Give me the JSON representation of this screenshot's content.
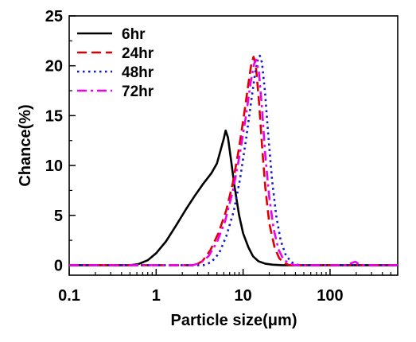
{
  "chart_data": {
    "type": "line",
    "xlabel": "Particle size(μm)",
    "ylabel": "Chance(%)",
    "xscale": "log",
    "xlim": [
      0.1,
      600
    ],
    "ylim": [
      -1,
      25
    ],
    "x_ticks": [
      {
        "value": 0.1,
        "label": "0.1"
      },
      {
        "value": 1,
        "label": "1"
      },
      {
        "value": 10,
        "label": "10"
      },
      {
        "value": 100,
        "label": "100"
      }
    ],
    "y_ticks": [
      {
        "value": 0,
        "label": "0"
      },
      {
        "value": 5,
        "label": "5"
      },
      {
        "value": 10,
        "label": "10"
      },
      {
        "value": 15,
        "label": "15"
      },
      {
        "value": 20,
        "label": "20"
      },
      {
        "value": 25,
        "label": "25"
      }
    ],
    "legend_position": "top-left",
    "grid": false,
    "series": [
      {
        "name": "6hr",
        "color": "#000000",
        "dash": "solid",
        "points": [
          [
            0.1,
            0
          ],
          [
            0.5,
            0
          ],
          [
            0.62,
            0.1
          ],
          [
            0.8,
            0.5
          ],
          [
            1.0,
            1.2
          ],
          [
            1.3,
            2.4
          ],
          [
            1.7,
            4.0
          ],
          [
            2.2,
            5.6
          ],
          [
            2.8,
            7.0
          ],
          [
            3.5,
            8.2
          ],
          [
            4.3,
            9.2
          ],
          [
            5.0,
            10.2
          ],
          [
            5.5,
            11.5
          ],
          [
            6.0,
            12.7
          ],
          [
            6.3,
            13.5
          ],
          [
            6.7,
            12.8
          ],
          [
            7.2,
            10.8
          ],
          [
            8.0,
            7.8
          ],
          [
            9.0,
            5.0
          ],
          [
            10.0,
            3.2
          ],
          [
            11.5,
            1.8
          ],
          [
            13.0,
            0.9
          ],
          [
            15.0,
            0.4
          ],
          [
            18.0,
            0.15
          ],
          [
            22.0,
            0.05
          ],
          [
            28.0,
            0
          ],
          [
            600,
            0
          ]
        ]
      },
      {
        "name": "24hr",
        "color": "#dd0000",
        "dash": "dashed",
        "points": [
          [
            0.1,
            0
          ],
          [
            2.8,
            0
          ],
          [
            3.4,
            0.4
          ],
          [
            4.2,
            1.5
          ],
          [
            5.2,
            3.2
          ],
          [
            6.4,
            5.5
          ],
          [
            7.6,
            8.2
          ],
          [
            9.0,
            11.8
          ],
          [
            10.3,
            15.2
          ],
          [
            11.5,
            18.2
          ],
          [
            12.5,
            20.3
          ],
          [
            13.2,
            20.9
          ],
          [
            14.0,
            20.1
          ],
          [
            15.2,
            16.5
          ],
          [
            16.5,
            12.0
          ],
          [
            18.0,
            7.8
          ],
          [
            20.0,
            4.2
          ],
          [
            23.0,
            1.8
          ],
          [
            26.0,
            0.7
          ],
          [
            30.0,
            0.2
          ],
          [
            34.0,
            0
          ],
          [
            600,
            0
          ]
        ]
      },
      {
        "name": "48hr",
        "color": "#1515d0",
        "dash": "dotted",
        "points": [
          [
            0.1,
            0
          ],
          [
            3.5,
            0
          ],
          [
            4.3,
            0.3
          ],
          [
            5.3,
            1.2
          ],
          [
            6.4,
            2.9
          ],
          [
            7.8,
            5.4
          ],
          [
            9.2,
            8.6
          ],
          [
            10.8,
            12.6
          ],
          [
            12.3,
            16.2
          ],
          [
            13.6,
            19.0
          ],
          [
            14.8,
            20.7
          ],
          [
            15.6,
            21.0
          ],
          [
            16.5,
            20.3
          ],
          [
            17.8,
            17.5
          ],
          [
            19.5,
            13.0
          ],
          [
            21.5,
            8.6
          ],
          [
            24.0,
            5.0
          ],
          [
            27.0,
            2.5
          ],
          [
            31.0,
            1.0
          ],
          [
            36.0,
            0.3
          ],
          [
            42.0,
            0.05
          ],
          [
            50.0,
            0
          ],
          [
            600,
            0
          ]
        ]
      },
      {
        "name": "72hr",
        "color": "#ee00ee",
        "dash": "dashdot",
        "points": [
          [
            0.1,
            0
          ],
          [
            2.6,
            0
          ],
          [
            3.2,
            0.2
          ],
          [
            4.0,
            0.9
          ],
          [
            5.0,
            2.3
          ],
          [
            6.2,
            4.4
          ],
          [
            7.6,
            7.4
          ],
          [
            9.2,
            11.2
          ],
          [
            10.8,
            15.0
          ],
          [
            12.2,
            18.3
          ],
          [
            13.4,
            20.2
          ],
          [
            14.2,
            20.6
          ],
          [
            15.2,
            19.4
          ],
          [
            16.5,
            15.7
          ],
          [
            18.0,
            11.0
          ],
          [
            20.0,
            6.8
          ],
          [
            22.5,
            3.6
          ],
          [
            25.5,
            1.6
          ],
          [
            29.0,
            0.6
          ],
          [
            34.0,
            0.15
          ],
          [
            40.0,
            0
          ],
          [
            150,
            0
          ],
          [
            175,
            0.2
          ],
          [
            195,
            0.35
          ],
          [
            215,
            0.1
          ],
          [
            240,
            0
          ],
          [
            600,
            0
          ]
        ]
      }
    ]
  }
}
